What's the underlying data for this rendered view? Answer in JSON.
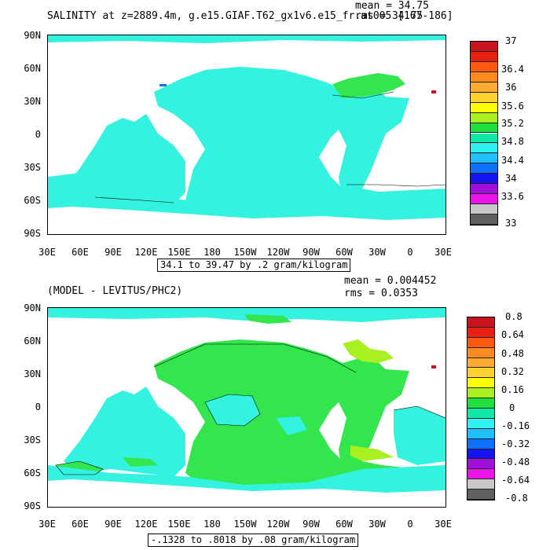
{
  "panels": [
    {
      "title": "SALINITY at z=2889.4m, g.e15.GIAF.T62_gx1v6.e15_fr.at005 [167-186]",
      "mean": "mean = 34.75",
      "rms": "rms = 34.75",
      "range": "34.1 to 39.47 by .2 gram/kilogram",
      "map_color": "#33f2e0",
      "accent_color": "#33e64d",
      "colorbar": {
        "colors": [
          "#c8141e",
          "#e8200f",
          "#ff5a10",
          "#ff8a20",
          "#ffaa30",
          "#ffd030",
          "#ffff00",
          "#a8f020",
          "#20e040",
          "#10e8a8",
          "#30f0f0",
          "#20c0ff",
          "#1070ff",
          "#1414f0",
          "#a010d8",
          "#e814e8",
          "#c8c8c8",
          "#606060"
        ],
        "labels": [
          "37",
          "36.4",
          "36",
          "35.6",
          "35.2",
          "34.8",
          "34.4",
          "34",
          "33.6",
          "33"
        ]
      }
    },
    {
      "title": "(MODEL - LEVITUS/PHC2)",
      "mean": "mean = 0.004452",
      "rms": "rms = 0.0353",
      "range": "-.1328 to .8018 by .08 gram/kilogram",
      "map_color": "#33f2e0",
      "accent_color": "#33e64d",
      "colorbar": {
        "colors": [
          "#c8141e",
          "#e8200f",
          "#ff5a10",
          "#ff8a20",
          "#ffaa30",
          "#ffd030",
          "#ffff00",
          "#a8f020",
          "#20e040",
          "#10e8a8",
          "#30f0f0",
          "#20c0ff",
          "#1070ff",
          "#1414f0",
          "#a010d8",
          "#e814e8",
          "#c8c8c8",
          "#606060"
        ],
        "labels": [
          "0.8",
          "0.64",
          "0.48",
          "0.32",
          "0.16",
          "0",
          "-0.16",
          "-0.32",
          "-0.48",
          "-0.64",
          "-0.8"
        ]
      }
    }
  ],
  "lat_labels": [
    "90N",
    "60N",
    "30N",
    "0",
    "30S",
    "60S",
    "90S"
  ],
  "lon_labels": [
    "30E",
    "60E",
    "90E",
    "120E",
    "150E",
    "180",
    "150W",
    "120W",
    "90W",
    "60W",
    "30W",
    "0",
    "30E"
  ]
}
